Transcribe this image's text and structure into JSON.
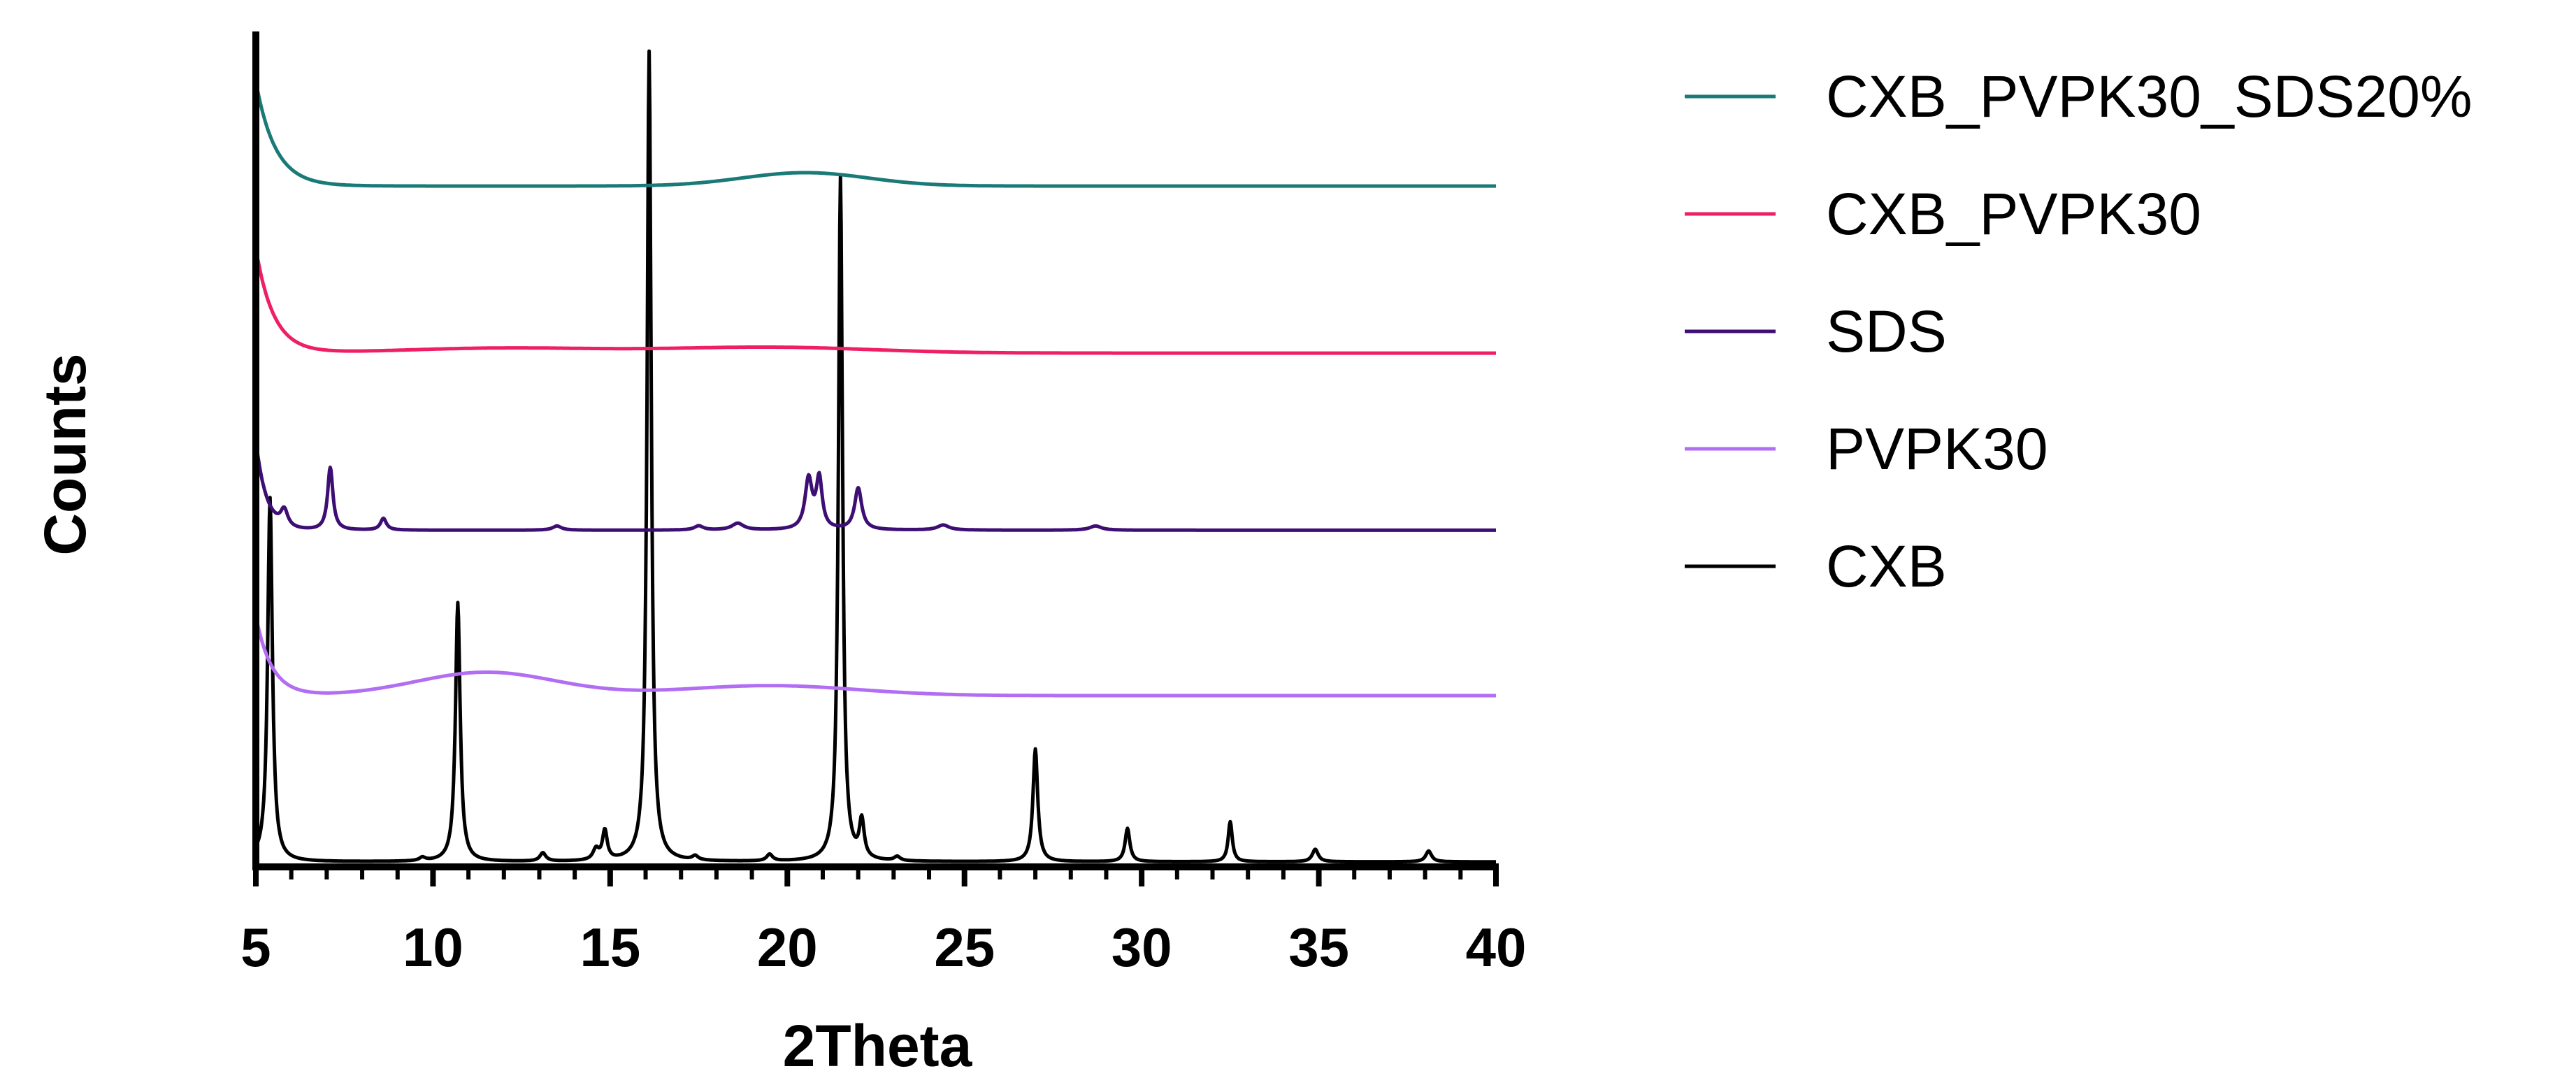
{
  "chart_data": {
    "type": "line",
    "title": "",
    "xlabel": "2Theta",
    "ylabel": "Counts",
    "xlim": [
      5,
      40
    ],
    "ylim": [
      0,
      100
    ],
    "x_ticks": [
      5,
      10,
      15,
      20,
      25,
      30,
      35,
      40
    ],
    "x_tick_labels": [
      "5",
      "10",
      "15",
      "20",
      "25",
      "30",
      "35",
      "40"
    ],
    "grid": false,
    "legend_position": "right",
    "series": [
      {
        "name": "CXB_PVPK30_SDS20%",
        "color": "#1a7a78",
        "baseline": 81.5,
        "start": 94,
        "decay": 0.55,
        "humps": [
          {
            "center": 20.5,
            "height": 1.6,
            "width": 2.5
          }
        ],
        "peaks": []
      },
      {
        "name": "CXB_PVPK30",
        "color": "#ef1f63",
        "baseline": 61.5,
        "start": 74,
        "decay": 0.5,
        "humps": [
          {
            "center": 12.0,
            "height": 0.6,
            "width": 4.0
          },
          {
            "center": 19.5,
            "height": 0.7,
            "width": 4.0
          }
        ],
        "peaks": []
      },
      {
        "name": "SDS",
        "color": "#3d0f74",
        "baseline": 40.3,
        "start": 51,
        "decay": 0.3,
        "humps": [],
        "peaks": [
          {
            "x": 5.8,
            "h": 2.0,
            "w": 0.12
          },
          {
            "x": 7.1,
            "h": 7.5,
            "w": 0.09
          },
          {
            "x": 8.6,
            "h": 1.4,
            "w": 0.1
          },
          {
            "x": 13.5,
            "h": 0.5,
            "w": 0.15
          },
          {
            "x": 17.5,
            "h": 0.5,
            "w": 0.15
          },
          {
            "x": 18.6,
            "h": 0.8,
            "w": 0.2
          },
          {
            "x": 20.6,
            "h": 6.0,
            "w": 0.12
          },
          {
            "x": 20.9,
            "h": 6.0,
            "w": 0.1
          },
          {
            "x": 22.0,
            "h": 5.0,
            "w": 0.12
          },
          {
            "x": 24.4,
            "h": 0.6,
            "w": 0.2
          },
          {
            "x": 28.7,
            "h": 0.5,
            "w": 0.2
          }
        ]
      },
      {
        "name": "PVPK30",
        "color": "#b26ef2",
        "baseline": 20.5,
        "start": 30,
        "decay": 0.45,
        "humps": [
          {
            "center": 11.5,
            "height": 2.8,
            "width": 2.8
          },
          {
            "center": 19.5,
            "height": 1.2,
            "width": 3.5
          }
        ],
        "peaks": []
      },
      {
        "name": "CXB",
        "color": "#000000",
        "baseline": 0.6,
        "start": 0.8,
        "decay": 0.5,
        "humps": [],
        "peaks": [
          {
            "x": 5.4,
            "h": 43.5,
            "w": 0.08
          },
          {
            "x": 9.7,
            "h": 0.4,
            "w": 0.1
          },
          {
            "x": 10.7,
            "h": 31.0,
            "w": 0.08
          },
          {
            "x": 13.1,
            "h": 1.0,
            "w": 0.1
          },
          {
            "x": 14.6,
            "h": 1.3,
            "w": 0.1
          },
          {
            "x": 14.85,
            "h": 3.5,
            "w": 0.08
          },
          {
            "x": 16.1,
            "h": 97.0,
            "w": 0.07
          },
          {
            "x": 17.4,
            "h": 0.5,
            "w": 0.1
          },
          {
            "x": 19.5,
            "h": 0.8,
            "w": 0.1
          },
          {
            "x": 21.5,
            "h": 82.0,
            "w": 0.07
          },
          {
            "x": 22.1,
            "h": 4.5,
            "w": 0.08
          },
          {
            "x": 23.1,
            "h": 0.5,
            "w": 0.1
          },
          {
            "x": 27.0,
            "h": 13.5,
            "w": 0.08
          },
          {
            "x": 29.6,
            "h": 4.0,
            "w": 0.08
          },
          {
            "x": 32.5,
            "h": 4.8,
            "w": 0.07
          },
          {
            "x": 34.9,
            "h": 1.5,
            "w": 0.1
          },
          {
            "x": 38.1,
            "h": 1.3,
            "w": 0.1
          }
        ]
      }
    ]
  }
}
